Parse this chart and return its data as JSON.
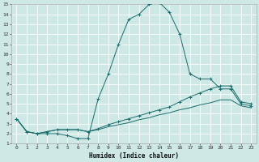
{
  "xlabel": "Humidex (Indice chaleur)",
  "xlim": [
    -0.5,
    23.5
  ],
  "ylim": [
    1,
    15
  ],
  "xticks": [
    0,
    1,
    2,
    3,
    4,
    5,
    6,
    7,
    8,
    9,
    10,
    11,
    12,
    13,
    14,
    15,
    16,
    17,
    18,
    19,
    20,
    21,
    22,
    23
  ],
  "yticks": [
    1,
    2,
    3,
    4,
    5,
    6,
    7,
    8,
    9,
    10,
    11,
    12,
    13,
    14,
    15
  ],
  "bg_color": "#cde8e5",
  "plot_bg": "#cde8e5",
  "grid_color": "#ffffff",
  "line_color": "#1a6b6b",
  "lines": [
    {
      "x": [
        0,
        1,
        2,
        3,
        4,
        5,
        6,
        7,
        8,
        9,
        10,
        11,
        12,
        13,
        14,
        15,
        16,
        17,
        18,
        19,
        20,
        21,
        22,
        23
      ],
      "y": [
        3.5,
        2.2,
        2.0,
        2.0,
        2.0,
        1.8,
        1.5,
        1.5,
        5.5,
        8.0,
        11.0,
        13.5,
        14.0,
        15.0,
        15.2,
        14.2,
        12.0,
        8.0,
        7.5,
        7.5,
        6.5,
        6.5,
        5.0,
        4.8
      ],
      "marker": "+"
    },
    {
      "x": [
        0,
        1,
        2,
        3,
        4,
        5,
        6,
        7,
        8,
        9,
        10,
        11,
        12,
        13,
        14,
        15,
        16,
        17,
        18,
        19,
        20,
        21,
        22,
        23
      ],
      "y": [
        3.5,
        2.2,
        2.0,
        2.2,
        2.4,
        2.4,
        2.4,
        2.2,
        2.5,
        2.9,
        3.2,
        3.5,
        3.8,
        4.1,
        4.4,
        4.7,
        5.2,
        5.7,
        6.1,
        6.5,
        6.8,
        6.8,
        5.2,
        5.0
      ],
      "marker": "+"
    },
    {
      "x": [
        0,
        1,
        2,
        3,
        4,
        5,
        6,
        7,
        8,
        9,
        10,
        11,
        12,
        13,
        14,
        15,
        16,
        17,
        18,
        19,
        20,
        21,
        22,
        23
      ],
      "y": [
        3.5,
        2.2,
        2.0,
        2.2,
        2.4,
        2.4,
        2.4,
        2.2,
        2.4,
        2.7,
        2.9,
        3.1,
        3.4,
        3.6,
        3.9,
        4.1,
        4.4,
        4.6,
        4.9,
        5.1,
        5.4,
        5.4,
        4.8,
        4.6
      ],
      "marker": null
    }
  ]
}
